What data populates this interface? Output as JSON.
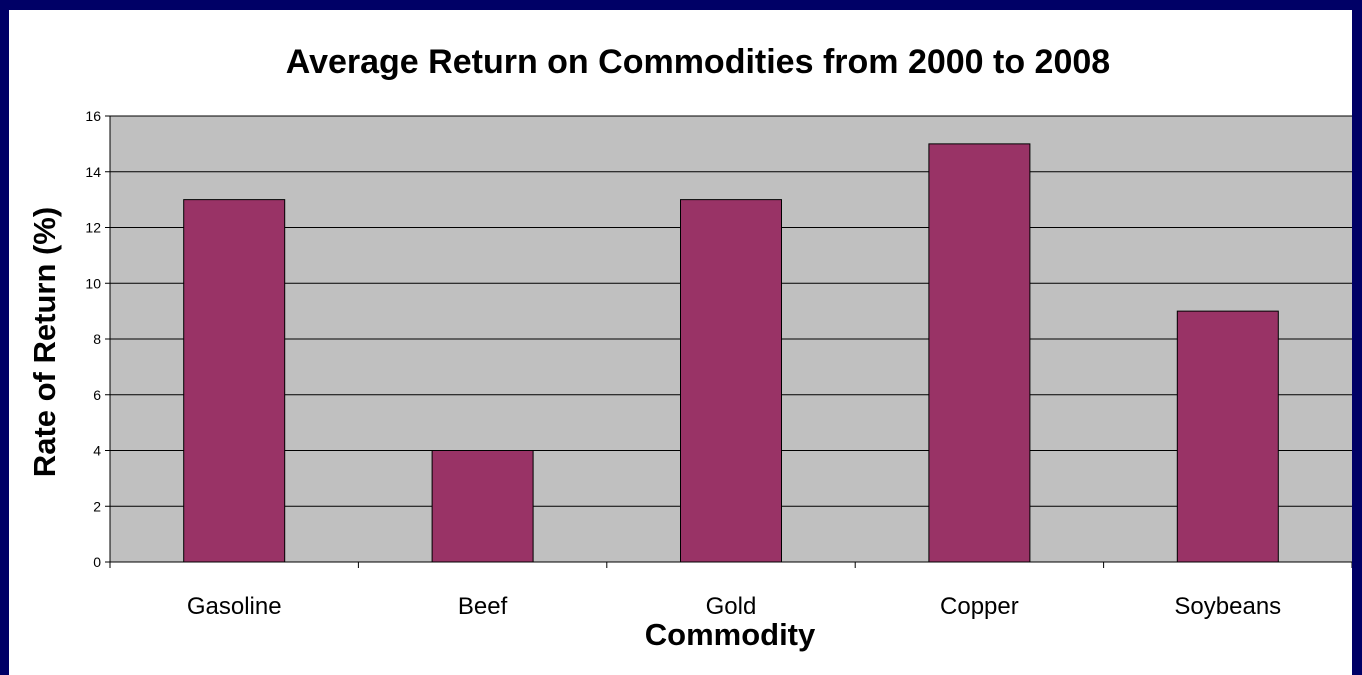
{
  "chart_data": {
    "type": "bar",
    "title": "Average Return on Commodities from 2000 to 2008",
    "xlabel": "Commodity",
    "ylabel": "Rate of Return (%)",
    "categories": [
      "Gasoline",
      "Beef",
      "Gold",
      "Copper",
      "Soybeans"
    ],
    "values": [
      13,
      4,
      13,
      15,
      9
    ],
    "ylim": [
      0,
      16
    ],
    "yticks": [
      0,
      2,
      4,
      6,
      8,
      10,
      12,
      14,
      16
    ],
    "grid": true,
    "legend": "none",
    "colors": {
      "bar_fill": "#993366",
      "bar_stroke": "#000000",
      "plot_background": "#c0c0c0",
      "gridline": "#000000",
      "page_border": "#000066"
    }
  }
}
